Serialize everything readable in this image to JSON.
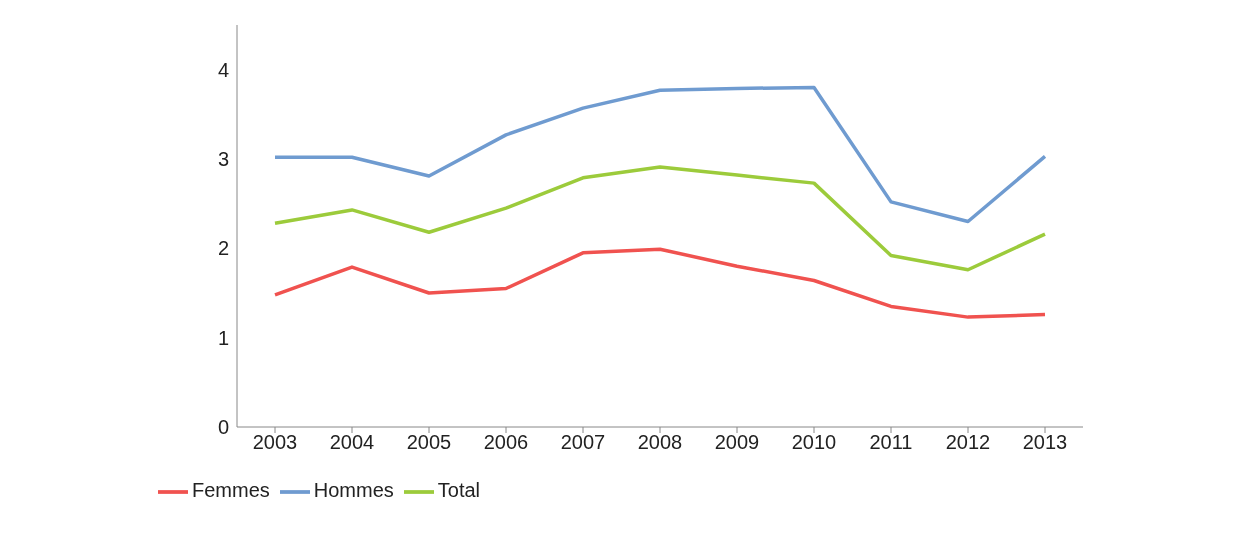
{
  "chart_data": {
    "type": "line",
    "categories": [
      "2003",
      "2004",
      "2005",
      "2006",
      "2007",
      "2008",
      "2009",
      "2010",
      "2011",
      "2012",
      "2013"
    ],
    "series": [
      {
        "name": "Femmes",
        "color": "#f0524f",
        "values": [
          1.48,
          1.79,
          1.5,
          1.55,
          1.95,
          1.99,
          1.8,
          1.64,
          1.35,
          1.23,
          1.26
        ]
      },
      {
        "name": "Hommes",
        "color": "#6f9bd0",
        "values": [
          3.02,
          3.02,
          2.81,
          3.27,
          3.57,
          3.77,
          3.79,
          3.8,
          2.52,
          2.3,
          3.03
        ]
      },
      {
        "name": "Total",
        "color": "#9ccb3b",
        "values": [
          2.28,
          2.43,
          2.18,
          2.45,
          2.79,
          2.91,
          2.82,
          2.73,
          1.92,
          1.76,
          2.16
        ]
      }
    ],
    "ylim": [
      0,
      4.5
    ],
    "yticks": [
      0,
      1,
      2,
      3,
      4
    ],
    "grid": false,
    "legend": "bottom left",
    "marker": "none",
    "line_style": "solid"
  }
}
